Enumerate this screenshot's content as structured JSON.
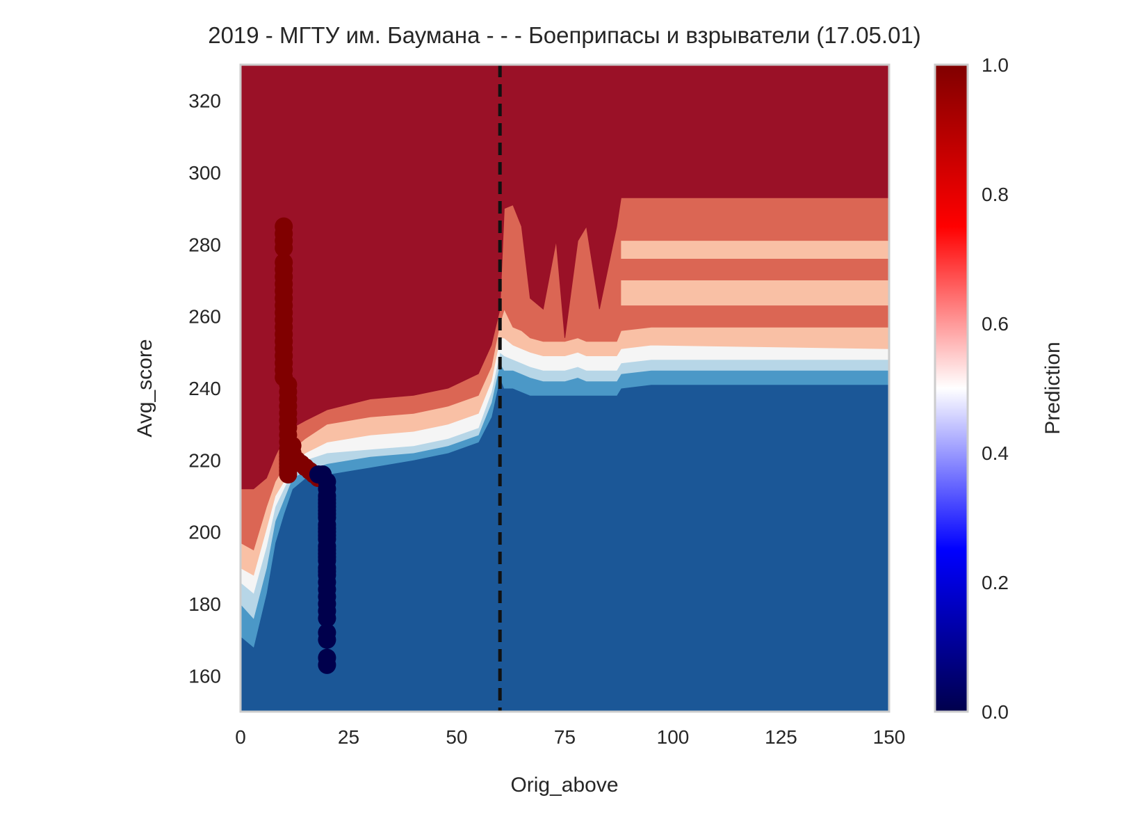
{
  "chart_data": {
    "type": "contour",
    "title": "2019 - МГТУ им. Баумана - - - Боеприпасы и взрыватели (17.05.01)",
    "xlabel": "Orig_above",
    "ylabel": "Avg_score",
    "xlim": [
      0,
      150
    ],
    "ylim": [
      150,
      330
    ],
    "x_ticks": [
      "0",
      "25",
      "50",
      "75",
      "100",
      "125",
      "150"
    ],
    "y_ticks": [
      "160",
      "180",
      "200",
      "220",
      "240",
      "260",
      "280",
      "300",
      "320"
    ],
    "colorbar": {
      "label": "Prediction",
      "range": [
        0.0,
        1.0
      ],
      "ticks": [
        "0.0",
        "0.2",
        "0.4",
        "0.6",
        "0.8",
        "1.0"
      ],
      "colormap": [
        "#00004c",
        "#0000ff",
        "#ffffff",
        "#ff0000",
        "#800000"
      ]
    },
    "contour_levels": {
      "colors": [
        "#1b5797",
        "#4b98c7",
        "#b7d6e7",
        "#f5f5f5",
        "#f9c0a5",
        "#db6654",
        "#9a1127"
      ]
    },
    "reference_line": {
      "x": 60,
      "style": "dashed",
      "color": "#111111"
    },
    "grid": false,
    "points": {
      "admitted": {
        "color": "#800000",
        "x": [
          10,
          10,
          10,
          10,
          10,
          10,
          10,
          10,
          10,
          10,
          10,
          10,
          10,
          10,
          10,
          10,
          10,
          10,
          10,
          10,
          10,
          11,
          11,
          11,
          11,
          11,
          11,
          11,
          11,
          11,
          11,
          11,
          11,
          11,
          11,
          11,
          11,
          11,
          12,
          12,
          12,
          13,
          14,
          15,
          16,
          17,
          18
        ],
        "y": [
          285,
          283,
          281,
          279,
          275,
          273,
          271,
          269,
          267,
          265,
          263,
          261,
          259,
          257,
          255,
          253,
          251,
          249,
          247,
          245,
          243,
          241,
          239,
          237,
          235,
          233,
          231,
          229,
          227,
          225,
          223,
          222,
          221,
          220,
          219,
          218,
          217,
          216,
          224,
          222,
          221,
          220,
          219,
          218,
          217,
          216,
          215
        ]
      },
      "rejected": {
        "color": "#00004c",
        "x": [
          18,
          19,
          20,
          20,
          20,
          20,
          20,
          20,
          20,
          20,
          20,
          20,
          20,
          20,
          20,
          20,
          20,
          20,
          20,
          20,
          20,
          20,
          20,
          20,
          20,
          20,
          20,
          20,
          20,
          20,
          20,
          20,
          20,
          20
        ],
        "y": [
          216,
          216,
          214,
          212,
          210,
          208,
          206,
          204,
          202,
          200,
          198,
          196,
          194,
          192,
          190,
          188,
          186,
          184,
          182,
          180,
          178,
          176,
          172,
          170,
          165,
          163,
          209,
          207,
          205,
          201,
          199,
          195,
          193,
          189
        ]
      }
    }
  }
}
